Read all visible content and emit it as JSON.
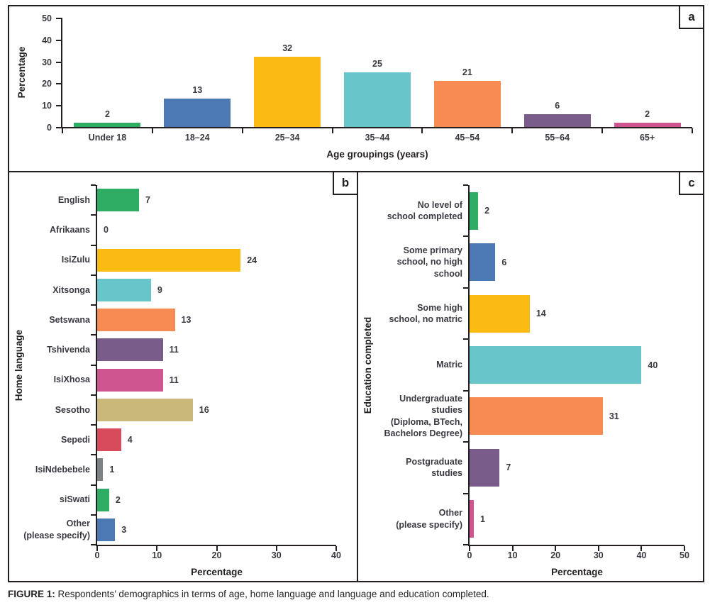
{
  "caption": {
    "prefix": "FIGURE 1:",
    "text": " Respondents’ demographics in terms of age, home language and language and education completed."
  },
  "chart_data": [
    {
      "id": "age-groupings",
      "panel_label": "a",
      "type": "bar",
      "orientation": "vertical",
      "xlabel": "Age groupings (years)",
      "ylabel": "Percentage",
      "ylim": [
        0,
        50
      ],
      "yticks": [
        0,
        10,
        20,
        30,
        40,
        50
      ],
      "categories": [
        "Under 18",
        "18–24",
        "25–34",
        "35–44",
        "45–54",
        "55–64",
        "65+"
      ],
      "values": [
        2,
        13,
        32,
        25,
        21,
        6,
        2
      ],
      "colors": [
        "#2FAD64",
        "#4C78B3",
        "#FBBB13",
        "#68C5C9",
        "#F68C53",
        "#7A5C8B",
        "#CE5590"
      ],
      "grid": false,
      "legend": "none"
    },
    {
      "id": "home-language",
      "panel_label": "b",
      "type": "bar",
      "orientation": "horizontal",
      "xlabel": "Percentage",
      "ylabel": "Home language",
      "xlim": [
        0,
        40
      ],
      "xticks": [
        0,
        10,
        20,
        30,
        40
      ],
      "categories": [
        "English",
        "Afrikaans",
        "IsiZulu",
        "Xitsonga",
        "Setswana",
        "Tshivenda",
        "IsiXhosa",
        "Sesotho",
        "Sepedi",
        "IsiNdebebele",
        "siSwati",
        "Other\n(please specify)"
      ],
      "values": [
        7,
        0,
        24,
        9,
        13,
        11,
        11,
        16,
        4,
        1,
        2,
        3
      ],
      "colors": [
        "#2FAD64",
        "#4C78B3",
        "#FBBB13",
        "#68C5C9",
        "#F68C53",
        "#7A5C8B",
        "#CE5590",
        "#C9B87A",
        "#D84B5C",
        "#7E8183",
        "#2FAD64",
        "#4C78B3"
      ],
      "grid": false,
      "legend": "none"
    },
    {
      "id": "education-completed",
      "panel_label": "c",
      "type": "bar",
      "orientation": "horizontal",
      "xlabel": "Percentage",
      "ylabel": "Education completed",
      "xlim": [
        0,
        50
      ],
      "xticks": [
        0,
        10,
        20,
        30,
        40,
        50
      ],
      "categories": [
        "No level of\nschool completed",
        "Some primary\nschool, no high\nschool",
        "Some high\nschool, no matric",
        "Matric",
        "Undergraduate\nstudies\n(Diploma, BTech,\nBachelors Degree)",
        "Postgraduate\nstudies",
        "Other\n(please specify)"
      ],
      "values": [
        2,
        6,
        14,
        40,
        31,
        7,
        1
      ],
      "colors": [
        "#2FAD64",
        "#4C78B3",
        "#FBBB13",
        "#68C5C9",
        "#F68C53",
        "#7A5C8B",
        "#CE5590"
      ],
      "grid": false,
      "legend": "none"
    }
  ]
}
